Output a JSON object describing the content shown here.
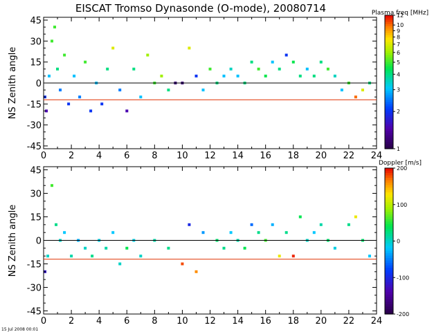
{
  "title": "EISCAT Tromso Dynasonde (O-mode),  20080714",
  "footer": "15 Jul 2008 00:01",
  "chart_data": [
    {
      "type": "scatter",
      "panel": "top",
      "ylabel": "NS Zenith angle",
      "xlabel": "",
      "xlim": [
        0,
        24
      ],
      "ylim": [
        -47,
        47
      ],
      "x_ticks": [
        0,
        2,
        4,
        6,
        8,
        10,
        12,
        14,
        16,
        18,
        20,
        22,
        24
      ],
      "y_ticks": [
        45,
        30,
        15,
        0,
        -15,
        -30,
        -45
      ],
      "reference_lines": [
        {
          "y": 0,
          "color": "#000000"
        },
        {
          "y": -12,
          "color": "#e03000"
        }
      ],
      "colorbar": {
        "title": "Plasma freq [MHz]",
        "scale": "log",
        "range": [
          1,
          12
        ],
        "ticks": [
          1,
          2,
          3,
          4,
          5,
          6,
          7,
          8,
          9,
          10,
          12
        ]
      },
      "series": [
        {
          "x": [
            0.1,
            0.2,
            0.4,
            0.6,
            0.8,
            1.0,
            1.2,
            1.5,
            1.8,
            2.2,
            2.6,
            3.0,
            3.4,
            3.8,
            4.2,
            4.6,
            5.0,
            5.5,
            6.0,
            6.5,
            7.0,
            7.5,
            8.0,
            8.5,
            9.0,
            9.5,
            10.0,
            10.5,
            11.0,
            11.5,
            12.0,
            12.5,
            13.0,
            13.5,
            14.0,
            14.5,
            15.0,
            15.5,
            16.0,
            16.5,
            17.0,
            17.5,
            18.0,
            18.5,
            19.0,
            19.5,
            20.0,
            20.5,
            21.0,
            21.5,
            22.0,
            22.5,
            23.0,
            23.5
          ],
          "y": [
            -10,
            -20,
            5,
            30,
            40,
            10,
            -5,
            20,
            -15,
            5,
            -10,
            15,
            -20,
            0,
            -15,
            10,
            25,
            -5,
            -20,
            10,
            -10,
            20,
            0,
            5,
            -5,
            0,
            0,
            25,
            5,
            -5,
            10,
            0,
            5,
            10,
            5,
            0,
            15,
            10,
            5,
            15,
            10,
            20,
            15,
            5,
            10,
            5,
            15,
            10,
            5,
            -5,
            0,
            -10,
            -5,
            0
          ],
          "plasma_freq": [
            2,
            1.5,
            3,
            5,
            5,
            4,
            2.5,
            5,
            2,
            3,
            2.5,
            5,
            2,
            3,
            2,
            4,
            7,
            2.5,
            1.5,
            4,
            3,
            6,
            5,
            6,
            4,
            1.2,
            1.2,
            7,
            2,
            3,
            5,
            4,
            3,
            3.5,
            3,
            4,
            4,
            5,
            4.5,
            3,
            4,
            2,
            4.5,
            4,
            3,
            4,
            4,
            5,
            3.5,
            3,
            5,
            10,
            7,
            4
          ]
        }
      ]
    },
    {
      "type": "scatter",
      "panel": "bottom",
      "ylabel": "NS Zenith angle",
      "xlabel": "",
      "xlim": [
        0,
        24
      ],
      "ylim": [
        -47,
        47
      ],
      "x_ticks": [
        0,
        2,
        4,
        6,
        8,
        10,
        12,
        14,
        16,
        18,
        20,
        22,
        24
      ],
      "y_ticks": [
        45,
        30,
        15,
        0,
        -15,
        -30,
        -45
      ],
      "reference_lines": [
        {
          "y": 0,
          "color": "#000000"
        },
        {
          "y": -12,
          "color": "#e03000"
        }
      ],
      "colorbar": {
        "title": "Doppler [m/s]",
        "scale": "linear",
        "range": [
          -200,
          200
        ],
        "ticks": [
          200,
          100,
          0,
          -100,
          -200
        ]
      },
      "series": [
        {
          "x": [
            0.1,
            0.3,
            0.6,
            0.9,
            1.2,
            1.5,
            2.0,
            2.5,
            3.0,
            3.5,
            4.0,
            4.5,
            5.0,
            5.5,
            6.0,
            6.5,
            7.0,
            8.0,
            9.0,
            10.0,
            10.5,
            11.0,
            11.5,
            12.5,
            13.0,
            13.5,
            14.0,
            14.5,
            15.0,
            15.5,
            16.0,
            16.5,
            17.0,
            17.5,
            18.0,
            18.5,
            19.0,
            19.5,
            20.0,
            20.5,
            21.0,
            22.0,
            22.5,
            23.0,
            23.5
          ],
          "y": [
            -20,
            -10,
            35,
            10,
            0,
            5,
            -10,
            0,
            -5,
            -10,
            0,
            -5,
            5,
            -15,
            -5,
            0,
            -10,
            0,
            -5,
            -15,
            10,
            -20,
            5,
            0,
            -5,
            5,
            0,
            -5,
            10,
            5,
            0,
            10,
            -10,
            5,
            -10,
            15,
            0,
            5,
            10,
            0,
            -5,
            10,
            15,
            0,
            -10
          ],
          "doppler": [
            -120,
            0,
            60,
            20,
            0,
            -20,
            10,
            -30,
            0,
            20,
            -10,
            10,
            -20,
            0,
            40,
            -10,
            0,
            10,
            20,
            180,
            -100,
            160,
            -40,
            30,
            20,
            -20,
            10,
            40,
            -60,
            20,
            60,
            -30,
            120,
            20,
            190,
            40,
            0,
            -20,
            10,
            30,
            -10,
            20,
            120,
            30,
            -20
          ]
        }
      ]
    }
  ]
}
